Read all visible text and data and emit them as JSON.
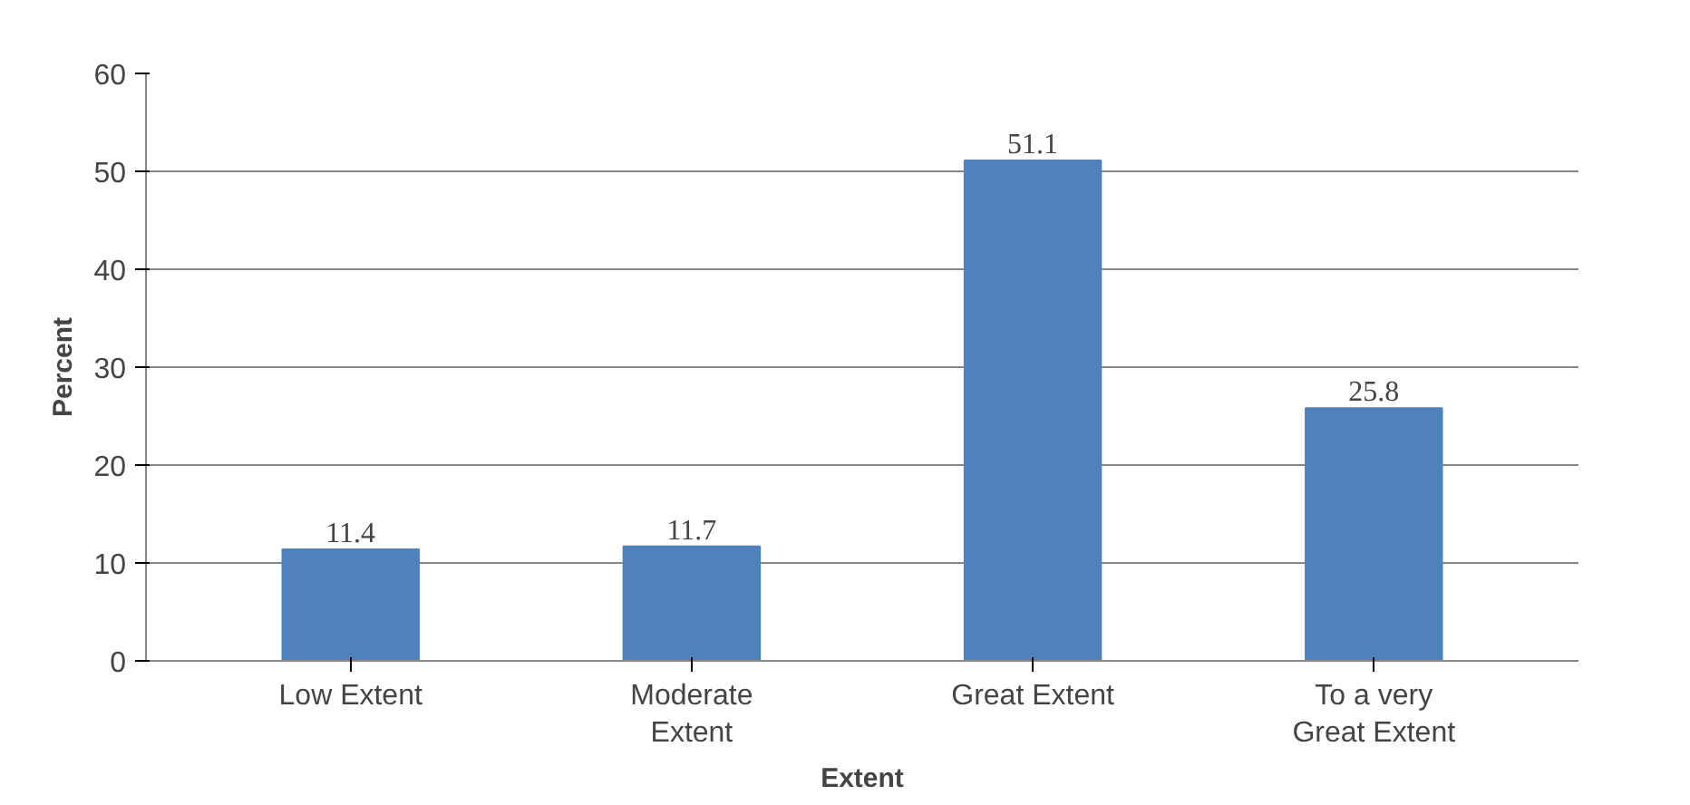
{
  "chart_data": {
    "type": "bar",
    "xlabel": "Extent",
    "ylabel": "Percent",
    "categories": [
      "Low Extent",
      "Moderate Extent",
      "Great Extent",
      "To a very Great Extent"
    ],
    "values": [
      11.4,
      11.7,
      51.1,
      25.8
    ],
    "color": "#4f81bd",
    "ylim": [
      0,
      60
    ],
    "yticks": [
      0,
      10,
      20,
      30,
      40,
      50,
      60
    ],
    "grid": "y",
    "data_labels": true
  }
}
